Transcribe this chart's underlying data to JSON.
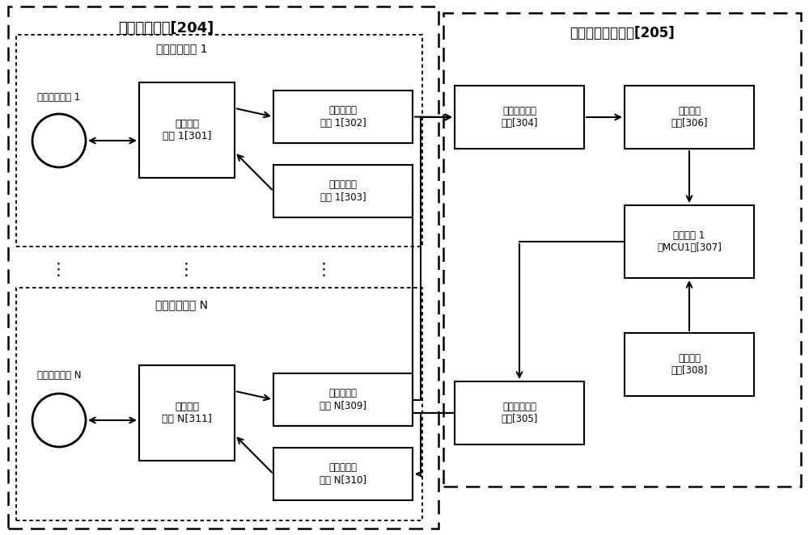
{
  "fig_width": 10.0,
  "fig_height": 6.62,
  "bg_color": "#ffffff",
  "title_204": "收发控制电路[204]",
  "title_205": "多点位置提取电路[205]",
  "label_ch1": "收发控制通道 1",
  "label_chN": "收发控制通道 N",
  "label_sensor1": "超声波传感器 1",
  "label_sensorN": "超声波传感器 N",
  "label_301": "收发切换\n电路 1[301]",
  "label_302": "超声波接收\n电路 1[302]",
  "label_303": "超声波发射\n电路 1[303]",
  "label_304": "接收多路选择\n电路[304]",
  "label_305": "发射多路选择\n电路[305]",
  "label_306": "信号处理\n电路[306]",
  "label_307": "微处理器 1\n（MCU1）[307]",
  "label_308": "温度测量\n电路[308]",
  "label_309": "超声波接收\n电路 N[309]",
  "label_310": "超声波发射\n电路 N[310]",
  "label_311": "收发切换\n电路 N[311]",
  "dots": "⋮"
}
